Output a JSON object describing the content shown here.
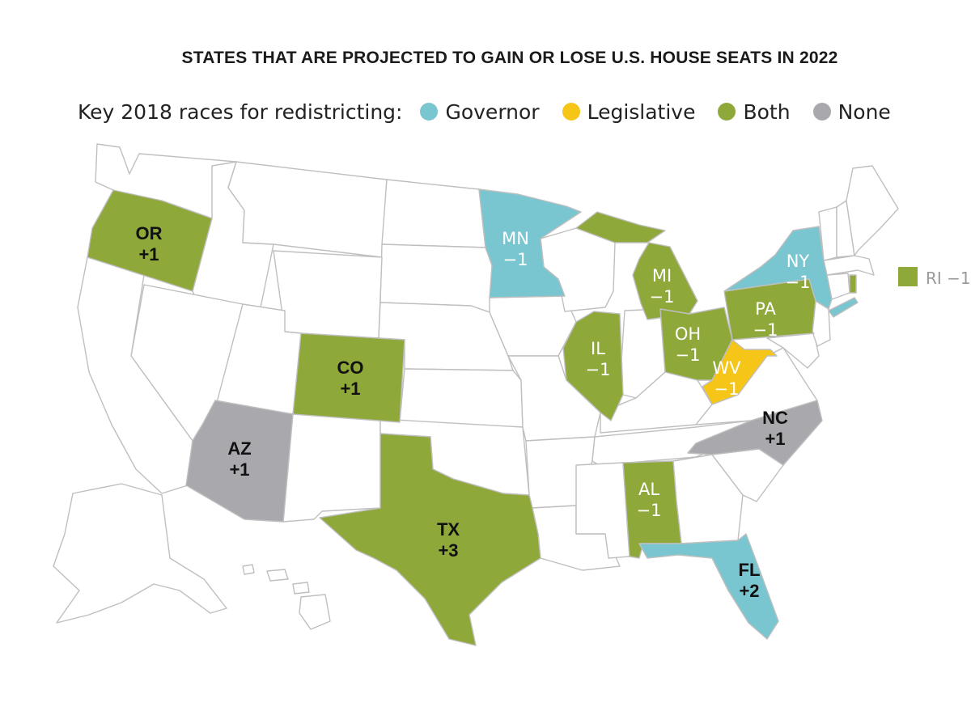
{
  "title": "STATES THAT ARE PROJECTED TO GAIN OR LOSE U.S. HOUSE SEATS IN 2022",
  "legend": {
    "label": "Key 2018 races for redistricting:",
    "items": [
      {
        "name": "Governor",
        "color": "#79c6d1"
      },
      {
        "name": "Legislative",
        "color": "#f5c518"
      },
      {
        "name": "Both",
        "color": "#8fa83a"
      },
      {
        "name": "None",
        "color": "#a9a9ad"
      }
    ]
  },
  "colors": {
    "governor": "#79c6d1",
    "legislative": "#f5c518",
    "both": "#8fa83a",
    "none": "#a9a9ad",
    "neutral": "#ffffff",
    "border": "#bfbfbf"
  },
  "states": [
    {
      "code": "OR",
      "change": "+1",
      "category": "both"
    },
    {
      "code": "CO",
      "change": "+1",
      "category": "both"
    },
    {
      "code": "AZ",
      "change": "+1",
      "category": "none"
    },
    {
      "code": "TX",
      "change": "+3",
      "category": "both"
    },
    {
      "code": "MN",
      "change": "−1",
      "category": "governor"
    },
    {
      "code": "IL",
      "change": "−1",
      "category": "both"
    },
    {
      "code": "MI",
      "change": "−1",
      "category": "both"
    },
    {
      "code": "OH",
      "change": "−1",
      "category": "both"
    },
    {
      "code": "PA",
      "change": "−1",
      "category": "both"
    },
    {
      "code": "WV",
      "change": "−1",
      "category": "legislative"
    },
    {
      "code": "NY",
      "change": "−1",
      "category": "governor"
    },
    {
      "code": "NC",
      "change": "+1",
      "category": "none"
    },
    {
      "code": "AL",
      "change": "−1",
      "category": "both"
    },
    {
      "code": "FL",
      "change": "+2",
      "category": "governor"
    },
    {
      "code": "RI",
      "change": "−1",
      "category": "both"
    }
  ],
  "ri_callout": "RI −1"
}
